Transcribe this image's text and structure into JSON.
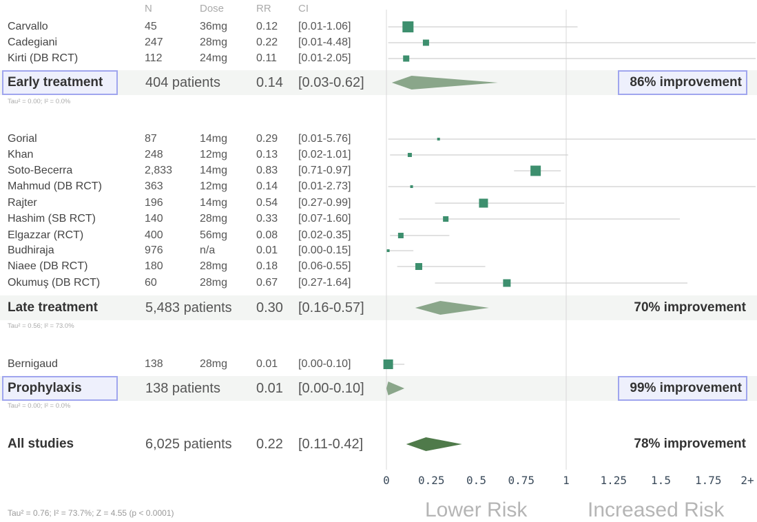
{
  "headers": {
    "n": "N",
    "dose": "Dose",
    "rr": "RR",
    "ci": "CI"
  },
  "colors": {
    "marker": "#3d8f6e",
    "diamond": "#8aa68a",
    "diamond_all": "#4f7a4a",
    "line": "#cfcfcf",
    "box": "#9fa5ee"
  },
  "chart_data": {
    "type": "forest",
    "x_ticks": [
      "0",
      "0.25",
      "0.5",
      "0.75",
      "1",
      "1.25",
      "1.5",
      "1.75",
      "2+"
    ],
    "xlim": [
      0,
      2
    ],
    "lower_label": "Lower Risk",
    "higher_label": "Increased Risk",
    "groups": [
      {
        "name": "Early treatment",
        "patients": "404 patients",
        "rr": 0.14,
        "rr_label": "0.14",
        "ci": [
          0.03,
          0.62
        ],
        "ci_label": "[0.03-0.62]",
        "improvement": "86% improvement",
        "tau": "Tau² = 0.00; I² = 0.0%",
        "studies": [
          {
            "name": "Carvallo",
            "n": "45",
            "dose": "36mg",
            "rr": 0.12,
            "rr_label": "0.12",
            "ci": [
              0.01,
              1.06
            ],
            "ci_label": "[0.01-1.06]",
            "weight": 16
          },
          {
            "name": "Cadegiani",
            "n": "247",
            "dose": "28mg",
            "rr": 0.22,
            "rr_label": "0.22",
            "ci": [
              0.01,
              4.48
            ],
            "ci_label": "[0.01-4.48]",
            "weight": 9
          },
          {
            "name": "Kirti (DB RCT)",
            "n": "112",
            "dose": "24mg",
            "rr": 0.11,
            "rr_label": "0.11",
            "ci": [
              0.01,
              2.05
            ],
            "ci_label": "[0.01-2.05]",
            "weight": 9
          }
        ]
      },
      {
        "name": "Late treatment",
        "patients": "5,483 patients",
        "rr": 0.3,
        "rr_label": "0.30",
        "ci": [
          0.16,
          0.57
        ],
        "ci_label": "[0.16-0.57]",
        "improvement": "70% improvement",
        "tau": "Tau² = 0.56; I² = 73.0%",
        "studies": [
          {
            "name": "Gorial",
            "n": "87",
            "dose": "14mg",
            "rr": 0.29,
            "rr_label": "0.29",
            "ci": [
              0.01,
              5.76
            ],
            "ci_label": "[0.01-5.76]",
            "weight": 4
          },
          {
            "name": "Khan",
            "n": "248",
            "dose": "12mg",
            "rr": 0.13,
            "rr_label": "0.13",
            "ci": [
              0.02,
              1.01
            ],
            "ci_label": "[0.02-1.01]",
            "weight": 6
          },
          {
            "name": "Soto-Becerra",
            "n": "2,833",
            "dose": "14mg",
            "rr": 0.83,
            "rr_label": "0.83",
            "ci": [
              0.71,
              0.97
            ],
            "ci_label": "[0.71-0.97]",
            "weight": 15
          },
          {
            "name": "Mahmud (DB RCT)",
            "n": "363",
            "dose": "12mg",
            "rr": 0.14,
            "rr_label": "0.14",
            "ci": [
              0.01,
              2.73
            ],
            "ci_label": "[0.01-2.73]",
            "weight": 4
          },
          {
            "name": "Rajter",
            "n": "196",
            "dose": "14mg",
            "rr": 0.54,
            "rr_label": "0.54",
            "ci": [
              0.27,
              0.99
            ],
            "ci_label": "[0.27-0.99]",
            "weight": 13
          },
          {
            "name": "Hashim (SB RCT)",
            "n": "140",
            "dose": "28mg",
            "rr": 0.33,
            "rr_label": "0.33",
            "ci": [
              0.07,
              1.6
            ],
            "ci_label": "[0.07-1.60]",
            "weight": 8
          },
          {
            "name": "Elgazzar (RCT)",
            "n": "400",
            "dose": "56mg",
            "rr": 0.08,
            "rr_label": "0.08",
            "ci": [
              0.02,
              0.35
            ],
            "ci_label": "[0.02-0.35]",
            "weight": 8
          },
          {
            "name": "Budhiraja",
            "n": "976",
            "dose": "n/a",
            "rr": 0.01,
            "rr_label": "0.01",
            "ci": [
              0.0,
              0.15
            ],
            "ci_label": "[0.00-0.15]",
            "weight": 4
          },
          {
            "name": "Niaee (DB RCT)",
            "n": "180",
            "dose": "28mg",
            "rr": 0.18,
            "rr_label": "0.18",
            "ci": [
              0.06,
              0.55
            ],
            "ci_label": "[0.06-0.55]",
            "weight": 10
          },
          {
            "name": "Okumuş (DB RCT)",
            "n": "60",
            "dose": "28mg",
            "rr": 0.67,
            "rr_label": "0.67",
            "ci": [
              0.27,
              1.64
            ],
            "ci_label": "[0.27-1.64]",
            "weight": 11
          }
        ]
      },
      {
        "name": "Prophylaxis",
        "patients": "138 patients",
        "rr": 0.01,
        "rr_label": "0.01",
        "ci": [
          0.0,
          0.1
        ],
        "ci_label": "[0.00-0.10]",
        "improvement": "99% improvement",
        "tau": "Tau² = 0.00; I² = 0.0%",
        "studies": [
          {
            "name": "Bernigaud",
            "n": "138",
            "dose": "28mg",
            "rr": 0.01,
            "rr_label": "0.01",
            "ci": [
              0.0,
              0.1
            ],
            "ci_label": "[0.00-0.10]",
            "weight": 14
          }
        ]
      }
    ],
    "overall": {
      "name": "All studies",
      "patients": "6,025 patients",
      "rr": 0.22,
      "rr_label": "0.22",
      "ci": [
        0.11,
        0.42
      ],
      "ci_label": "[0.11-0.42]",
      "improvement": "78% improvement"
    },
    "footer": "Tau² = 0.76; I² = 73.7%; Z = 4.55 (p < 0.0001)"
  }
}
